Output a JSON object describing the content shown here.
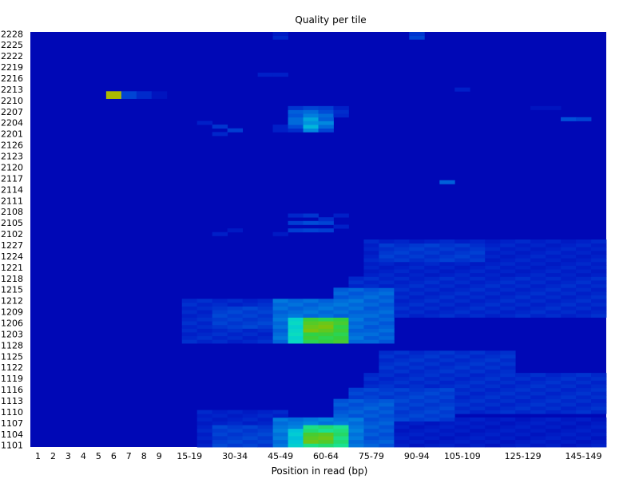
{
  "chart_data": {
    "type": "heatmap",
    "title": "Quality per tile",
    "xlabel": "Position in read (bp)",
    "ylabel": "",
    "x_categories": [
      "1",
      "2",
      "3",
      "4",
      "5",
      "6",
      "7",
      "8",
      "9",
      "10-14",
      "15-19",
      "20-24",
      "25-29",
      "30-34",
      "35-39",
      "40-44",
      "45-49",
      "50-54",
      "55-59",
      "60-64",
      "65-69",
      "70-74",
      "75-79",
      "80-84",
      "85-89",
      "90-94",
      "95-99",
      "100-104",
      "105-109",
      "110-114",
      "115-119",
      "120-124",
      "125-129",
      "130-134",
      "135-139",
      "140-144",
      "145-149",
      "150-151"
    ],
    "x_tick_labels": [
      "1",
      "2",
      "3",
      "4",
      "5",
      "6",
      "7",
      "8",
      "9",
      "15-19",
      "30-34",
      "45-49",
      "60-64",
      "75-79",
      "90-94",
      "105-109",
      "125-129",
      "145-149"
    ],
    "y_tiles": [
      "1101",
      "1102",
      "1103",
      "1104",
      "1105",
      "1106",
      "1107",
      "1108",
      "1109",
      "1110",
      "1111",
      "1112",
      "1113",
      "1114",
      "1115",
      "1116",
      "1117",
      "1118",
      "1119",
      "1120",
      "1121",
      "1122",
      "1123",
      "1124",
      "1125",
      "1126",
      "1127",
      "1128",
      "1201",
      "1202",
      "1203",
      "1204",
      "1205",
      "1206",
      "1207",
      "1208",
      "1209",
      "1210",
      "1211",
      "1212",
      "1213",
      "1214",
      "1215",
      "1216",
      "1217",
      "1218",
      "1219",
      "1220",
      "1221",
      "1222",
      "1223",
      "1224",
      "1225",
      "1226",
      "1227",
      "1228",
      "2101",
      "2102",
      "2103",
      "2104",
      "2105",
      "2106",
      "2107",
      "2108",
      "2109",
      "2110",
      "2111",
      "2112",
      "2113",
      "2114",
      "2115",
      "2116",
      "2117",
      "2118",
      "2119",
      "2120",
      "2121",
      "2122",
      "2123",
      "2124",
      "2125",
      "2126",
      "2127",
      "2128",
      "2201",
      "2202",
      "2203",
      "2204",
      "2205",
      "2206",
      "2207",
      "2208",
      "2209",
      "2210",
      "2211",
      "2212",
      "2213",
      "2214",
      "2215",
      "2216",
      "2217",
      "2218",
      "2219",
      "2220",
      "2221",
      "2222",
      "2223",
      "2224",
      "2225",
      "2226",
      "2227",
      "2228"
    ],
    "y_tick_labels": [
      "1101",
      "1104",
      "1107",
      "1110",
      "1113",
      "1116",
      "1119",
      "1122",
      "1125",
      "1128",
      "1203",
      "1206",
      "1209",
      "1212",
      "1215",
      "1218",
      "1221",
      "1224",
      "1227",
      "2102",
      "2105",
      "2108",
      "2111",
      "2114",
      "2117",
      "2120",
      "2123",
      "2126",
      "2201",
      "2204",
      "2207",
      "2210",
      "2213",
      "2216",
      "2219",
      "2222",
      "2225",
      "2228"
    ],
    "color_scale": {
      "stops": [
        "#0000b0",
        "#0020c8",
        "#0050d8",
        "#0090e0",
        "#00c8d8",
        "#10e8b0",
        "#30d040",
        "#90c000",
        "#e0b000"
      ],
      "range": [
        0,
        1
      ]
    },
    "background_value": 0.03,
    "cells": [
      [
        "1",
        1,
        0
      ],
      [
        "2",
        1,
        0
      ],
      [
        "6",
        "2211",
        0.92
      ],
      [
        "6",
        "2212",
        0.92
      ],
      [
        "7",
        "2211",
        0.22
      ],
      [
        "7",
        "2212",
        0.22
      ],
      [
        "8",
        "2211",
        0.15
      ],
      [
        "8",
        "2212",
        0.15
      ],
      [
        "9",
        "2211",
        0.08
      ],
      [
        "9",
        "2212",
        0.08
      ],
      [
        "45-49",
        "2227",
        0.14
      ],
      [
        "45-49",
        "2228",
        0.1
      ],
      [
        "40-44",
        "2217",
        0.12
      ],
      [
        "45-49",
        "2217",
        0.12
      ],
      [
        "90-94",
        "2227",
        0.22
      ],
      [
        "90-94",
        "2228",
        0.18
      ],
      [
        "105-109",
        "2213",
        0.12
      ],
      [
        "140-144",
        "2205",
        0.25
      ],
      [
        "145-149",
        "2205",
        0.22
      ],
      [
        "130-134",
        "2208",
        0.08
      ],
      [
        "135-139",
        "2208",
        0.08
      ],
      [
        "100-104",
        "2116",
        0.28
      ],
      [
        "25-29",
        "2203",
        0.18
      ],
      [
        "30-34",
        "2202",
        0.2
      ],
      [
        "25-29",
        "2201",
        0.14
      ],
      [
        "20-24",
        "2204",
        0.12
      ],
      [
        "50-54",
        "2208",
        0.18
      ],
      [
        "55-59",
        "2208",
        0.22
      ],
      [
        "60-64",
        "2208",
        0.2
      ],
      [
        "65-69",
        "2208",
        0.12
      ],
      [
        "50-54",
        "2207",
        0.28
      ],
      [
        "55-59",
        "2207",
        0.3
      ],
      [
        "60-64",
        "2207",
        0.24
      ],
      [
        "65-69",
        "2207",
        0.16
      ],
      [
        "50-54",
        "2206",
        0.26
      ],
      [
        "55-59",
        "2206",
        0.34
      ],
      [
        "60-64",
        "2206",
        0.3
      ],
      [
        "65-69",
        "2206",
        0.14
      ],
      [
        "50-54",
        "2205",
        0.3
      ],
      [
        "55-59",
        "2205",
        0.42
      ],
      [
        "60-64",
        "2205",
        0.28
      ],
      [
        "50-54",
        "2204",
        0.3
      ],
      [
        "55-59",
        "2204",
        0.38
      ],
      [
        "60-64",
        "2204",
        0.36
      ],
      [
        "50-54",
        "2203",
        0.24
      ],
      [
        "55-59",
        "2203",
        0.46
      ],
      [
        "60-64",
        "2203",
        0.3
      ],
      [
        "50-54",
        "2202",
        0.16
      ],
      [
        "55-59",
        "2202",
        0.36
      ],
      [
        "60-64",
        "2202",
        0.22
      ],
      [
        "45-49",
        "2203",
        0.12
      ],
      [
        "45-49",
        "2202",
        0.12
      ],
      [
        "50-54",
        "2107",
        0.14
      ],
      [
        "55-59",
        "2107",
        0.18
      ],
      [
        "60-64",
        "2106",
        0.16
      ],
      [
        "65-69",
        "2107",
        0.12
      ],
      [
        "50-54",
        "2105",
        0.2
      ],
      [
        "55-59",
        "2105",
        0.24
      ],
      [
        "60-64",
        "2105",
        0.22
      ],
      [
        "50-54",
        "2103",
        0.2
      ],
      [
        "55-59",
        "2103",
        0.22
      ],
      [
        "60-64",
        "2103",
        0.2
      ],
      [
        "65-69",
        "2104",
        0.12
      ],
      [
        "25-29",
        "2102",
        0.12
      ],
      [
        "30-34",
        "2103",
        0.1
      ],
      [
        "45-49",
        "2102",
        0.1
      ]
    ],
    "regions": [
      {
        "x_from": "75-79",
        "x_to": "150-151",
        "y_from": "1219",
        "y_to": "1228",
        "value": 0.12
      },
      {
        "x_from": "80-84",
        "x_to": "110-114",
        "y_from": "1223",
        "y_to": "1227",
        "value": 0.18
      },
      {
        "x_from": "70-74",
        "x_to": "150-151",
        "y_from": "1208",
        "y_to": "1218",
        "value": 0.14
      },
      {
        "x_from": "15-19",
        "x_to": "45-49",
        "y_from": "1201",
        "y_to": "1212",
        "value": 0.14
      },
      {
        "x_from": "25-29",
        "x_to": "45-49",
        "y_from": "1205",
        "y_to": "1210",
        "value": 0.2
      },
      {
        "x_from": "65-69",
        "x_to": "80-84",
        "y_from": "1201",
        "y_to": "1215",
        "value": 0.28
      },
      {
        "x_from": "45-49",
        "x_to": "70-74",
        "y_from": "1201",
        "y_to": "1212",
        "value": 0.3
      },
      {
        "x_from": "50-54",
        "x_to": "55-59",
        "y_from": "1201",
        "y_to": "1207",
        "value": 0.55
      },
      {
        "x_from": "55-59",
        "x_to": "65-69",
        "y_from": "1201",
        "y_to": "1207",
        "value": 0.75
      },
      {
        "x_from": "55-59",
        "x_to": "60-64",
        "y_from": "1204",
        "y_to": "1206",
        "value": 0.82
      },
      {
        "x_from": "80-84",
        "x_to": "120-124",
        "y_from": "1121",
        "y_to": "1126",
        "value": 0.16
      },
      {
        "x_from": "75-79",
        "x_to": "150-151",
        "y_from": "1110",
        "y_to": "1120",
        "value": 0.15
      },
      {
        "x_from": "70-74",
        "x_to": "100-104",
        "y_from": "1108",
        "y_to": "1116",
        "value": 0.2
      },
      {
        "x_from": "20-24",
        "x_to": "45-49",
        "y_from": "1101",
        "y_to": "1110",
        "value": 0.12
      },
      {
        "x_from": "25-29",
        "x_to": "45-49",
        "y_from": "1101",
        "y_to": "1106",
        "value": 0.2
      },
      {
        "x_from": "65-69",
        "x_to": "80-84",
        "y_from": "1101",
        "y_to": "1113",
        "value": 0.26
      },
      {
        "x_from": "45-49",
        "x_to": "70-74",
        "y_from": "1101",
        "y_to": "1108",
        "value": 0.32
      },
      {
        "x_from": "50-54",
        "x_to": "55-59",
        "y_from": "1101",
        "y_to": "1105",
        "value": 0.5
      },
      {
        "x_from": "55-59",
        "x_to": "65-69",
        "y_from": "1101",
        "y_to": "1106",
        "value": 0.68
      },
      {
        "x_from": "55-59",
        "x_to": "60-64",
        "y_from": "1102",
        "y_to": "1104",
        "value": 0.8
      },
      {
        "x_from": "70-74",
        "x_to": "150-151",
        "y_from": "1101",
        "y_to": "1108",
        "value": 0.1
      }
    ]
  }
}
